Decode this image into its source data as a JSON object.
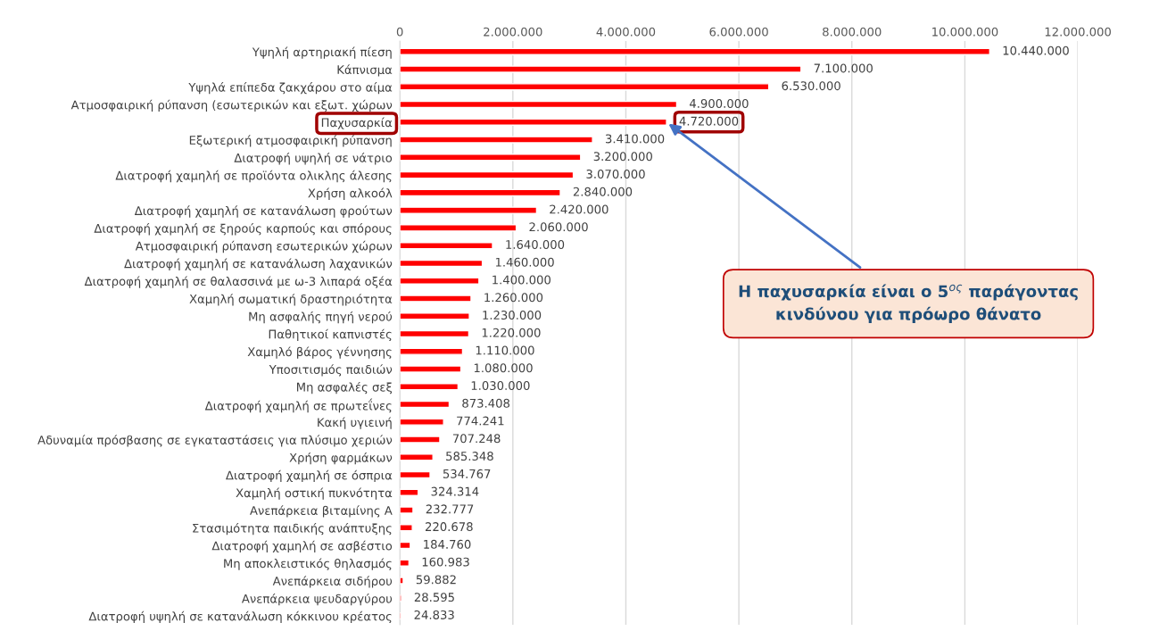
{
  "chart_data": {
    "type": "bar",
    "orientation": "horizontal",
    "categories": [
      "Υψηλή αρτηριακή πίεση",
      "Κάπνισμα",
      "Υψηλά επίπεδα ζακχάρου στο αίμα",
      "Ατμοσφαιρική ρύπανση (εσωτερικών και εξωτ. χώρων",
      "Παχυσαρκία",
      "Εξωτερική ατμοσφαιρική ρύπανση",
      "Διατροφή υψηλή σε νάτριο",
      "Διατροφή χαμηλή σε προϊόντα ολικλης άλεσης",
      "Χρήση αλκοόλ",
      "Διατροφή χαμηλή σε κατανάλωση φρούτων",
      "Διατροφή χαμηλή σε ξηρούς καρπούς και σπόρους",
      "Ατμοσφαιρική ρύπανση εσωτερικών χώρων",
      "Διατροφή χαμηλή σε κατανάλωση λαχανικών",
      "Διατροφή χαμηλή σε θαλασσινά με ω-3 λιπαρά οξέα",
      "Χαμηλή σωματική δραστηριότητα",
      "Μη ασφαλής πηγή νερού",
      "Παθητικοί καπνιστές",
      "Χαμηλό βάρος γέννησης",
      "Υποσιτισμός παιδιών",
      "Μη ασφαλές σεξ",
      "Διατροφή χαμηλή σε πρωτεΐνες",
      "Κακή υγιεινή",
      "Αδυναμία πρόσβασης σε εγκαταστάσεις για πλύσιμο χεριών",
      "Χρήση φαρμάκων",
      "Διατροφή χαμηλή σε όσπρια",
      "Χαμηλή οστική πυκνότητα",
      "Ανεπάρκεια βιταμίνης Α",
      "Στασιμότητα παιδικής ανάπτυξης",
      "Διατροφή χαμηλή σε ασβέστιο",
      "Μη αποκλειστικός θηλασμός",
      "Ανεπάρκεια σιδήρου",
      "Ανεπάρκεια ψευδαργύρου",
      "Διατροφή υψηλή σε κατανάλωση κόκκινου κρέατος"
    ],
    "values": [
      10440000,
      7100000,
      6530000,
      4900000,
      4720000,
      3410000,
      3200000,
      3070000,
      2840000,
      2420000,
      2060000,
      1640000,
      1460000,
      1400000,
      1260000,
      1230000,
      1220000,
      1110000,
      1080000,
      1030000,
      873408,
      774241,
      707248,
      585348,
      534767,
      324314,
      232777,
      220678,
      184760,
      160983,
      59882,
      28595,
      24833
    ],
    "value_labels": [
      "10.440.000",
      "7.100.000",
      "6.530.000",
      "4.900.000",
      "4.720.000",
      "3.410.000",
      "3.200.000",
      "3.070.000",
      "2.840.000",
      "2.420.000",
      "2.060.000",
      "1.640.000",
      "1.460.000",
      "1.400.000",
      "1.260.000",
      "1.230.000",
      "1.220.000",
      "1.110.000",
      "1.080.000",
      "1.030.000",
      "873.408",
      "774.241",
      "707.248",
      "585.348",
      "534.767",
      "324.314",
      "232.777",
      "220.678",
      "184.760",
      "160.983",
      "59.882",
      "28.595",
      "24.833"
    ],
    "color": "#ff0000",
    "xlim": [
      0,
      12000000
    ],
    "xticks": [
      {
        "value": 0,
        "label": "0"
      },
      {
        "value": 2000000,
        "label": "2.000.000"
      },
      {
        "value": 4000000,
        "label": "4.000.000"
      },
      {
        "value": 6000000,
        "label": "6.000.000"
      },
      {
        "value": 8000000,
        "label": "8.000.000"
      },
      {
        "value": 10000000,
        "label": "10.000.000"
      },
      {
        "value": 12000000,
        "label": "12.000.000"
      }
    ],
    "grid": "x",
    "annotations": [
      {
        "text": "Η παχυσαρκία είναι ο 5$^{ος}$ παράγοντας\nκινδύνου για πρόωρο θάνατο",
        "x": 4720000,
        "y": "Παχυσαρκία"
      }
    ]
  }
}
